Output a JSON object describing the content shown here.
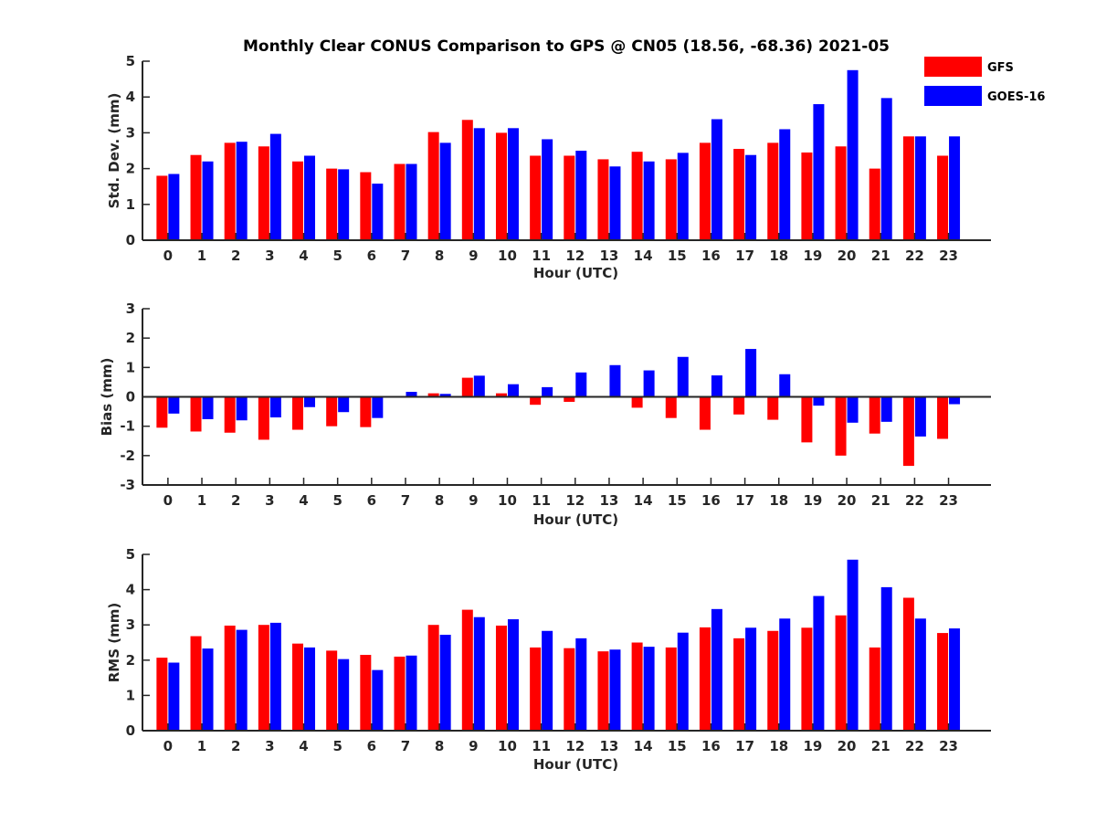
{
  "chart_data": [
    {
      "type": "bar",
      "title": "Monthly Clear CONUS Comparison to GPS @ CN05 (18.56, -68.36) 2021-05",
      "xlabel": "Hour (UTC)",
      "ylabel": "Std. Dev. (mm)",
      "ylim": [
        0,
        5
      ],
      "yticks": [
        0,
        1,
        2,
        3,
        4,
        5
      ],
      "categories": [
        "0",
        "1",
        "2",
        "3",
        "4",
        "5",
        "6",
        "7",
        "8",
        "9",
        "10",
        "11",
        "12",
        "13",
        "14",
        "15",
        "16",
        "17",
        "18",
        "19",
        "20",
        "21",
        "22",
        "23"
      ],
      "series": [
        {
          "name": "GFS",
          "color": "#ff0000",
          "values": [
            1.8,
            2.38,
            2.72,
            2.62,
            2.2,
            2.0,
            1.9,
            2.13,
            3.02,
            3.36,
            3.0,
            2.36,
            2.36,
            2.26,
            2.47,
            2.26,
            2.72,
            2.55,
            2.72,
            2.45,
            2.62,
            2.0,
            2.9,
            2.36
          ]
        },
        {
          "name": "GOES-16",
          "color": "#0000ff",
          "values": [
            1.85,
            2.2,
            2.75,
            2.97,
            2.36,
            1.98,
            1.58,
            2.13,
            2.72,
            3.13,
            3.13,
            2.82,
            2.5,
            2.06,
            2.2,
            2.44,
            3.38,
            2.38,
            3.1,
            3.8,
            4.75,
            3.97,
            2.9,
            2.9
          ]
        }
      ]
    },
    {
      "type": "bar",
      "title": "",
      "xlabel": "Hour (UTC)",
      "ylabel": "Bias (mm)",
      "ylim": [
        -3,
        3
      ],
      "yticks": [
        -3,
        -2,
        -1,
        0,
        1,
        2,
        3
      ],
      "zero_line": true,
      "categories": [
        "0",
        "1",
        "2",
        "3",
        "4",
        "5",
        "6",
        "7",
        "8",
        "9",
        "10",
        "11",
        "12",
        "13",
        "14",
        "15",
        "16",
        "17",
        "18",
        "19",
        "20",
        "21",
        "22",
        "23"
      ],
      "series": [
        {
          "name": "GFS",
          "color": "#ff0000",
          "values": [
            -1.05,
            -1.18,
            -1.22,
            -1.46,
            -1.12,
            -1.0,
            -1.03,
            0.0,
            0.12,
            0.65,
            0.12,
            -0.27,
            -0.17,
            0.0,
            -0.37,
            -0.72,
            -1.12,
            -0.6,
            -0.78,
            -1.55,
            -2.0,
            -1.25,
            -2.35,
            -1.43
          ]
        },
        {
          "name": "GOES-16",
          "color": "#0000ff",
          "values": [
            -0.57,
            -0.76,
            -0.8,
            -0.7,
            -0.35,
            -0.52,
            -0.72,
            0.17,
            0.1,
            0.72,
            0.43,
            0.33,
            0.83,
            1.08,
            0.9,
            1.36,
            0.73,
            1.63,
            0.77,
            -0.3,
            -0.88,
            -0.85,
            -1.35,
            -0.25
          ]
        }
      ]
    },
    {
      "type": "bar",
      "title": "",
      "xlabel": "Hour (UTC)",
      "ylabel": "RMS (mm)",
      "ylim": [
        0,
        5
      ],
      "yticks": [
        0,
        1,
        2,
        3,
        4,
        5
      ],
      "categories": [
        "0",
        "1",
        "2",
        "3",
        "4",
        "5",
        "6",
        "7",
        "8",
        "9",
        "10",
        "11",
        "12",
        "13",
        "14",
        "15",
        "16",
        "17",
        "18",
        "19",
        "20",
        "21",
        "22",
        "23"
      ],
      "series": [
        {
          "name": "GFS",
          "color": "#ff0000",
          "values": [
            2.07,
            2.68,
            2.98,
            3.0,
            2.47,
            2.27,
            2.15,
            2.1,
            3.0,
            3.43,
            2.98,
            2.36,
            2.34,
            2.25,
            2.5,
            2.36,
            2.93,
            2.62,
            2.83,
            2.92,
            3.27,
            2.36,
            3.77,
            2.77
          ]
        },
        {
          "name": "GOES-16",
          "color": "#0000ff",
          "values": [
            1.93,
            2.33,
            2.86,
            3.06,
            2.36,
            2.03,
            1.72,
            2.13,
            2.72,
            3.22,
            3.16,
            2.83,
            2.62,
            2.3,
            2.38,
            2.78,
            3.45,
            2.92,
            3.18,
            3.82,
            4.85,
            4.07,
            3.18,
            2.9
          ]
        }
      ]
    }
  ],
  "legend": {
    "position": "top-right",
    "entries": [
      {
        "label": "GFS",
        "color": "#ff0000"
      },
      {
        "label": "GOES-16",
        "color": "#0000ff"
      }
    ]
  }
}
